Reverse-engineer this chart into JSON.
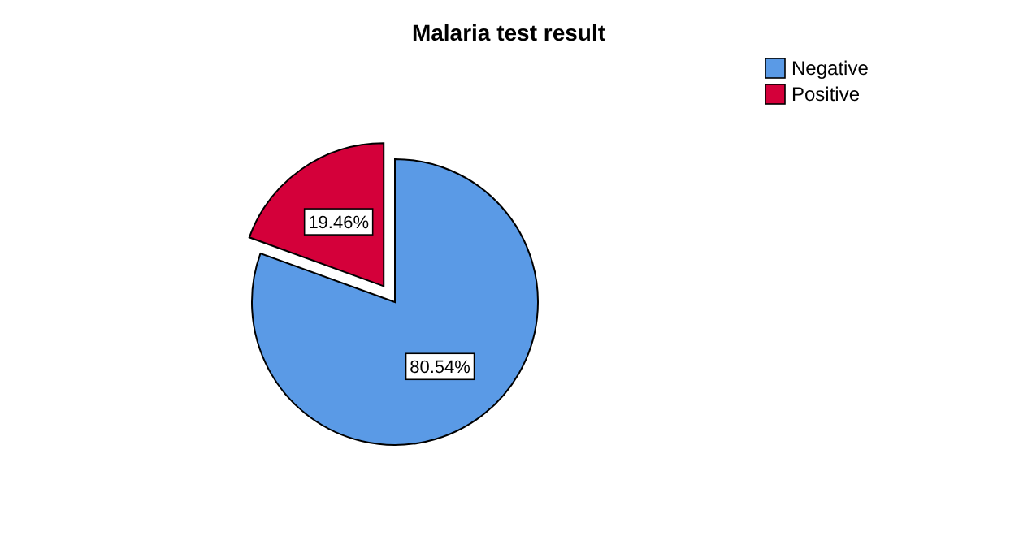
{
  "chart_data": {
    "type": "pie",
    "title": "Malaria test result",
    "categories": [
      "Negative",
      "Positive"
    ],
    "values": [
      80.54,
      19.46
    ],
    "colors": [
      "#5a9ae6",
      "#d4003a"
    ],
    "value_labels": [
      "80.54%",
      "19.46%"
    ],
    "legend": "top right"
  }
}
